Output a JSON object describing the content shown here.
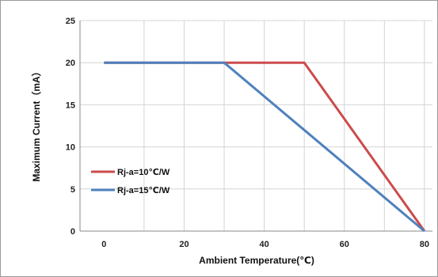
{
  "chart_data": {
    "type": "line",
    "xlabel": "Ambient Temperature(℃)",
    "ylabel": "Maximum Current（mA）",
    "xlim": [
      -6,
      82
    ],
    "ylim": [
      0,
      25
    ],
    "xticks": [
      0,
      20,
      40,
      60,
      80
    ],
    "yticks": [
      0,
      5,
      10,
      15,
      20,
      25
    ],
    "grid": true,
    "legend_position": "left",
    "series": [
      {
        "name": "Rj-a=10℃/W",
        "color": "#cc4b4b",
        "x": [
          0,
          50,
          80
        ],
        "y": [
          20,
          20,
          0
        ]
      },
      {
        "name": "Rj-a=15℃/W",
        "color": "#4f81bd",
        "x": [
          0,
          30,
          80
        ],
        "y": [
          20,
          20,
          0
        ]
      }
    ]
  }
}
